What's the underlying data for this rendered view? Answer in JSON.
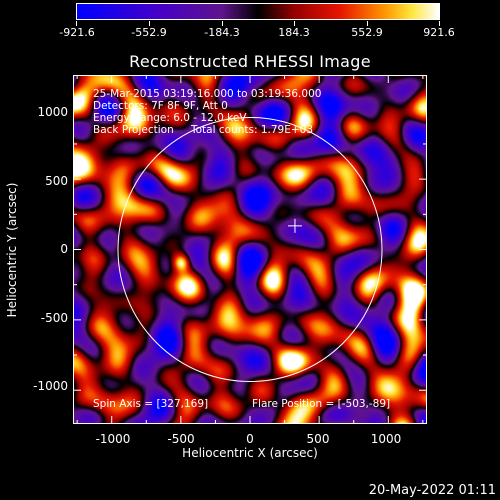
{
  "colorbar": {
    "labels": [
      "-921.6",
      "-552.9",
      "-184.3",
      "184.3",
      "552.9",
      "921.6"
    ]
  },
  "title": "Reconstructed RHESSI Image",
  "info": {
    "line1": "25-Mar-2015 03:19:16.000 to 03:19:36.000",
    "line2": "Detectors: 7F 8F 9F, Att 0",
    "line3": "Energy Range: 6.0 - 12.0 keV",
    "line4_left": "Back Projection",
    "line4_right": "Total counts: 1.79E+03",
    "spin_axis": "Spin Axis = [327,169]",
    "flare_position": "Flare Position = [-503,-89]"
  },
  "axes": {
    "xlabel": "Heliocentric X (arcsec)",
    "ylabel": "Heliocentric Y (arcsec)",
    "xticks": [
      "-1000",
      "-500",
      "0",
      "500",
      "1000"
    ],
    "yticks": [
      "1000",
      "500",
      "0",
      "-500",
      "-1000"
    ],
    "xrange": [
      -1280,
      1280
    ],
    "yrange": [
      -1240,
      1240
    ]
  },
  "solar_limb_radius_arcsec": 960,
  "flare_marker_arcsec": [
    327,
    169
  ],
  "footer_date": "20-May-2022 01:11",
  "colors": {
    "low": "#0000ff",
    "mid_low": "#6a00b0",
    "zero": "#000000",
    "mid_high": "#d00000",
    "high": "#ffffff"
  }
}
